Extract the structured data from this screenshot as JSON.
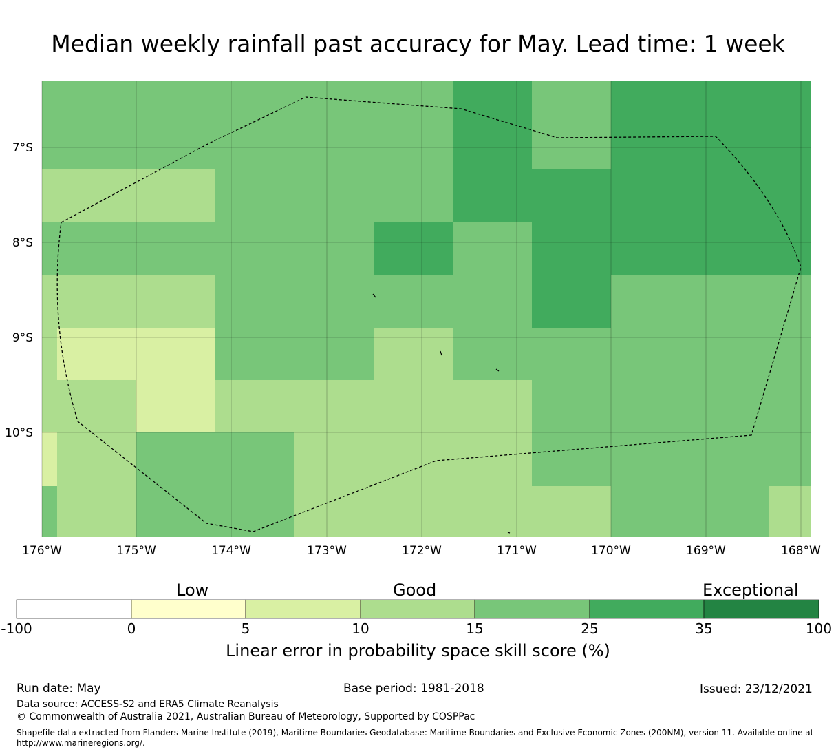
{
  "title": "Median weekly rainfall past accuracy for May. Lead time: 1 week",
  "map": {
    "lat_labels": [
      "7°S",
      "8°S",
      "9°S",
      "10°S"
    ],
    "lon_labels": [
      "176°W",
      "175°W",
      "174°W",
      "173°W",
      "172°W",
      "171°W",
      "170°W",
      "169°W",
      "168°W"
    ],
    "lon_range": [
      -176,
      -168
    ],
    "lat_range": [
      -11.1,
      -6.3
    ],
    "eez_boundary_style": "dashed"
  },
  "colorbar": {
    "category_labels": [
      "Low",
      "Good",
      "Exceptional"
    ],
    "tick_labels": [
      "-100",
      "0",
      "5",
      "10",
      "15",
      "25",
      "35",
      "100"
    ],
    "colors": [
      "#ffffff",
      "#ffffcc",
      "#d9f0a3",
      "#addd8e",
      "#78c679",
      "#41ab5d",
      "#238443"
    ],
    "label": "Linear error in probability space skill score (%)"
  },
  "footer": {
    "run_date": "Run date: May",
    "base_period": "Base period: 1981-2018",
    "issued": "Issued: 23/12/2021",
    "data_source": "Data source: ACCESS-S2 and ERA5 Climate Reanalysis",
    "copyright": "© Commonwealth of Australia 2021, Australian Bureau of Meteorology, Supported by COSPPac",
    "shapefile_line1": "Shapefile data extracted from Flanders Marine Institute (2019), Maritime Boundaries Geodatabase: Maritime Boundaries and Exclusive Economic Zones (200NM), version 11. Available online at",
    "shapefile_line2": "http://www.marineregions.org/."
  }
}
